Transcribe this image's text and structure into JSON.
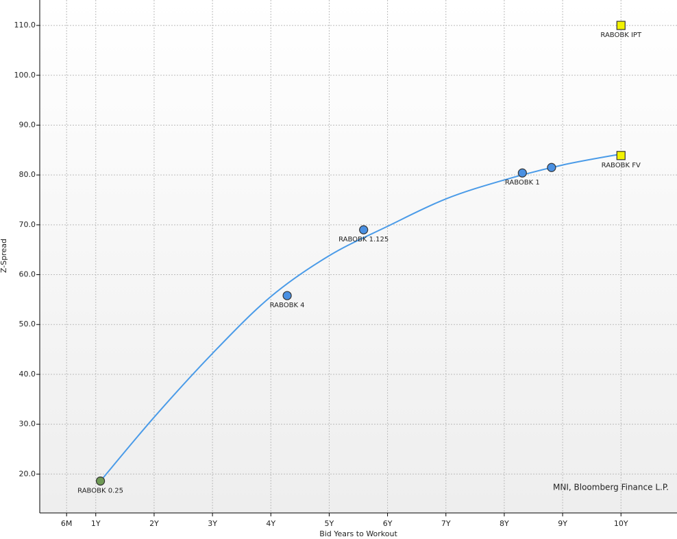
{
  "chart_data": {
    "type": "scatter",
    "x_label": "Bid Years to Workout",
    "y_label": "Z-Spread",
    "source": "MNI, Bloomberg Finance L.P.",
    "xlim": [
      0.04,
      10.96
    ],
    "ylim": [
      12.2,
      115.1
    ],
    "xticks": [
      {
        "value": 0.5,
        "label": "6M"
      },
      {
        "value": 1,
        "label": "1Y"
      },
      {
        "value": 2,
        "label": "2Y"
      },
      {
        "value": 3,
        "label": "3Y"
      },
      {
        "value": 4,
        "label": "4Y"
      },
      {
        "value": 5,
        "label": "5Y"
      },
      {
        "value": 6,
        "label": "6Y"
      },
      {
        "value": 7,
        "label": "7Y"
      },
      {
        "value": 8,
        "label": "8Y"
      },
      {
        "value": 9,
        "label": "9Y"
      },
      {
        "value": 10,
        "label": "10Y"
      }
    ],
    "yticks": [
      {
        "value": 20,
        "label": "20.0"
      },
      {
        "value": 30,
        "label": "30.0"
      },
      {
        "value": 40,
        "label": "40.0"
      },
      {
        "value": 50,
        "label": "50.0"
      },
      {
        "value": 60,
        "label": "60.0"
      },
      {
        "value": 70,
        "label": "70.0"
      },
      {
        "value": 80,
        "label": "80.0"
      },
      {
        "value": 90,
        "label": "90.0"
      },
      {
        "value": 100,
        "label": "100.0"
      },
      {
        "value": 110,
        "label": "110.0"
      }
    ],
    "grid": true,
    "curve": {
      "color": "#4a9be8",
      "x": [
        1.08,
        2,
        3,
        4,
        5,
        6,
        7,
        8,
        9,
        10
      ],
      "values": [
        18.6,
        31.4,
        44.2,
        55.6,
        63.8,
        69.7,
        75.2,
        79.0,
        82.0,
        84.2
      ]
    },
    "points": [
      {
        "label": "RABOBK 0.25",
        "x": 1.08,
        "y": 18.6,
        "shape": "circle",
        "color": "#6f9a55"
      },
      {
        "label": "RABOBK 4",
        "x": 4.28,
        "y": 55.8,
        "shape": "circle",
        "color": "#4a90e2"
      },
      {
        "label": "RABOBK 1.125",
        "x": 5.59,
        "y": 69.0,
        "shape": "circle",
        "color": "#4a90e2"
      },
      {
        "label": "RABOBK 1",
        "x": 8.31,
        "y": 80.4,
        "shape": "circle",
        "color": "#4a90e2"
      },
      {
        "label": null,
        "x": 8.81,
        "y": 81.5,
        "shape": "circle",
        "color": "#4a90e2"
      },
      {
        "label": "RABOBK FV",
        "x": 10.0,
        "y": 83.9,
        "shape": "square",
        "color": "#f2f200"
      },
      {
        "label": "RABOBK IPT",
        "x": 10.0,
        "y": 110.0,
        "shape": "square",
        "color": "#f2f200"
      }
    ]
  }
}
